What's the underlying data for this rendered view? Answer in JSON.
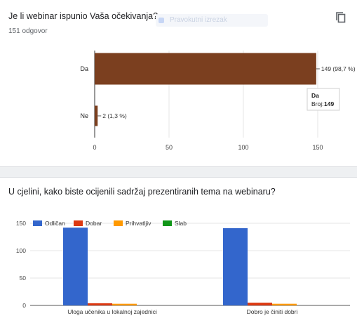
{
  "question1": {
    "title": "Je li webinar ispunio Vaša očekivanja?",
    "response_count": "151 odgovor",
    "ghost_label": "Pravokutni izrezak",
    "tooltip": {
      "category": "Da",
      "label": "Broj:",
      "value": "149"
    }
  },
  "question2": {
    "title": "U cjelini, kako biste ocijenili sadržaj prezentiranih tema na webinaru?"
  },
  "chart_data": [
    {
      "type": "bar",
      "orientation": "horizontal",
      "categories": [
        "Da",
        "Ne"
      ],
      "values": [
        149,
        2
      ],
      "data_labels": [
        "149 (98,7 %)",
        "2 (1,3 %)"
      ],
      "xlim": [
        0,
        150
      ],
      "xticks": [
        0,
        50,
        100,
        150
      ],
      "color": "#7b3f1f",
      "grid": true
    },
    {
      "type": "bar",
      "orientation": "vertical",
      "categories": [
        "Uloga učenika u lokalnoj zajednici",
        "Dobro je činiti dobri"
      ],
      "series": [
        {
          "name": "Odličan",
          "values": [
            142,
            141
          ],
          "color": "#3366cc"
        },
        {
          "name": "Dobar",
          "values": [
            4,
            5
          ],
          "color": "#dc3912"
        },
        {
          "name": "Prihvatljiv",
          "values": [
            3,
            3
          ],
          "color": "#ff9900"
        },
        {
          "name": "Slab",
          "values": [
            0,
            0
          ],
          "color": "#109618"
        }
      ],
      "ylim": [
        0,
        150
      ],
      "yticks": [
        0,
        50,
        100,
        150
      ],
      "legend": "top-left",
      "grid": true
    }
  ]
}
